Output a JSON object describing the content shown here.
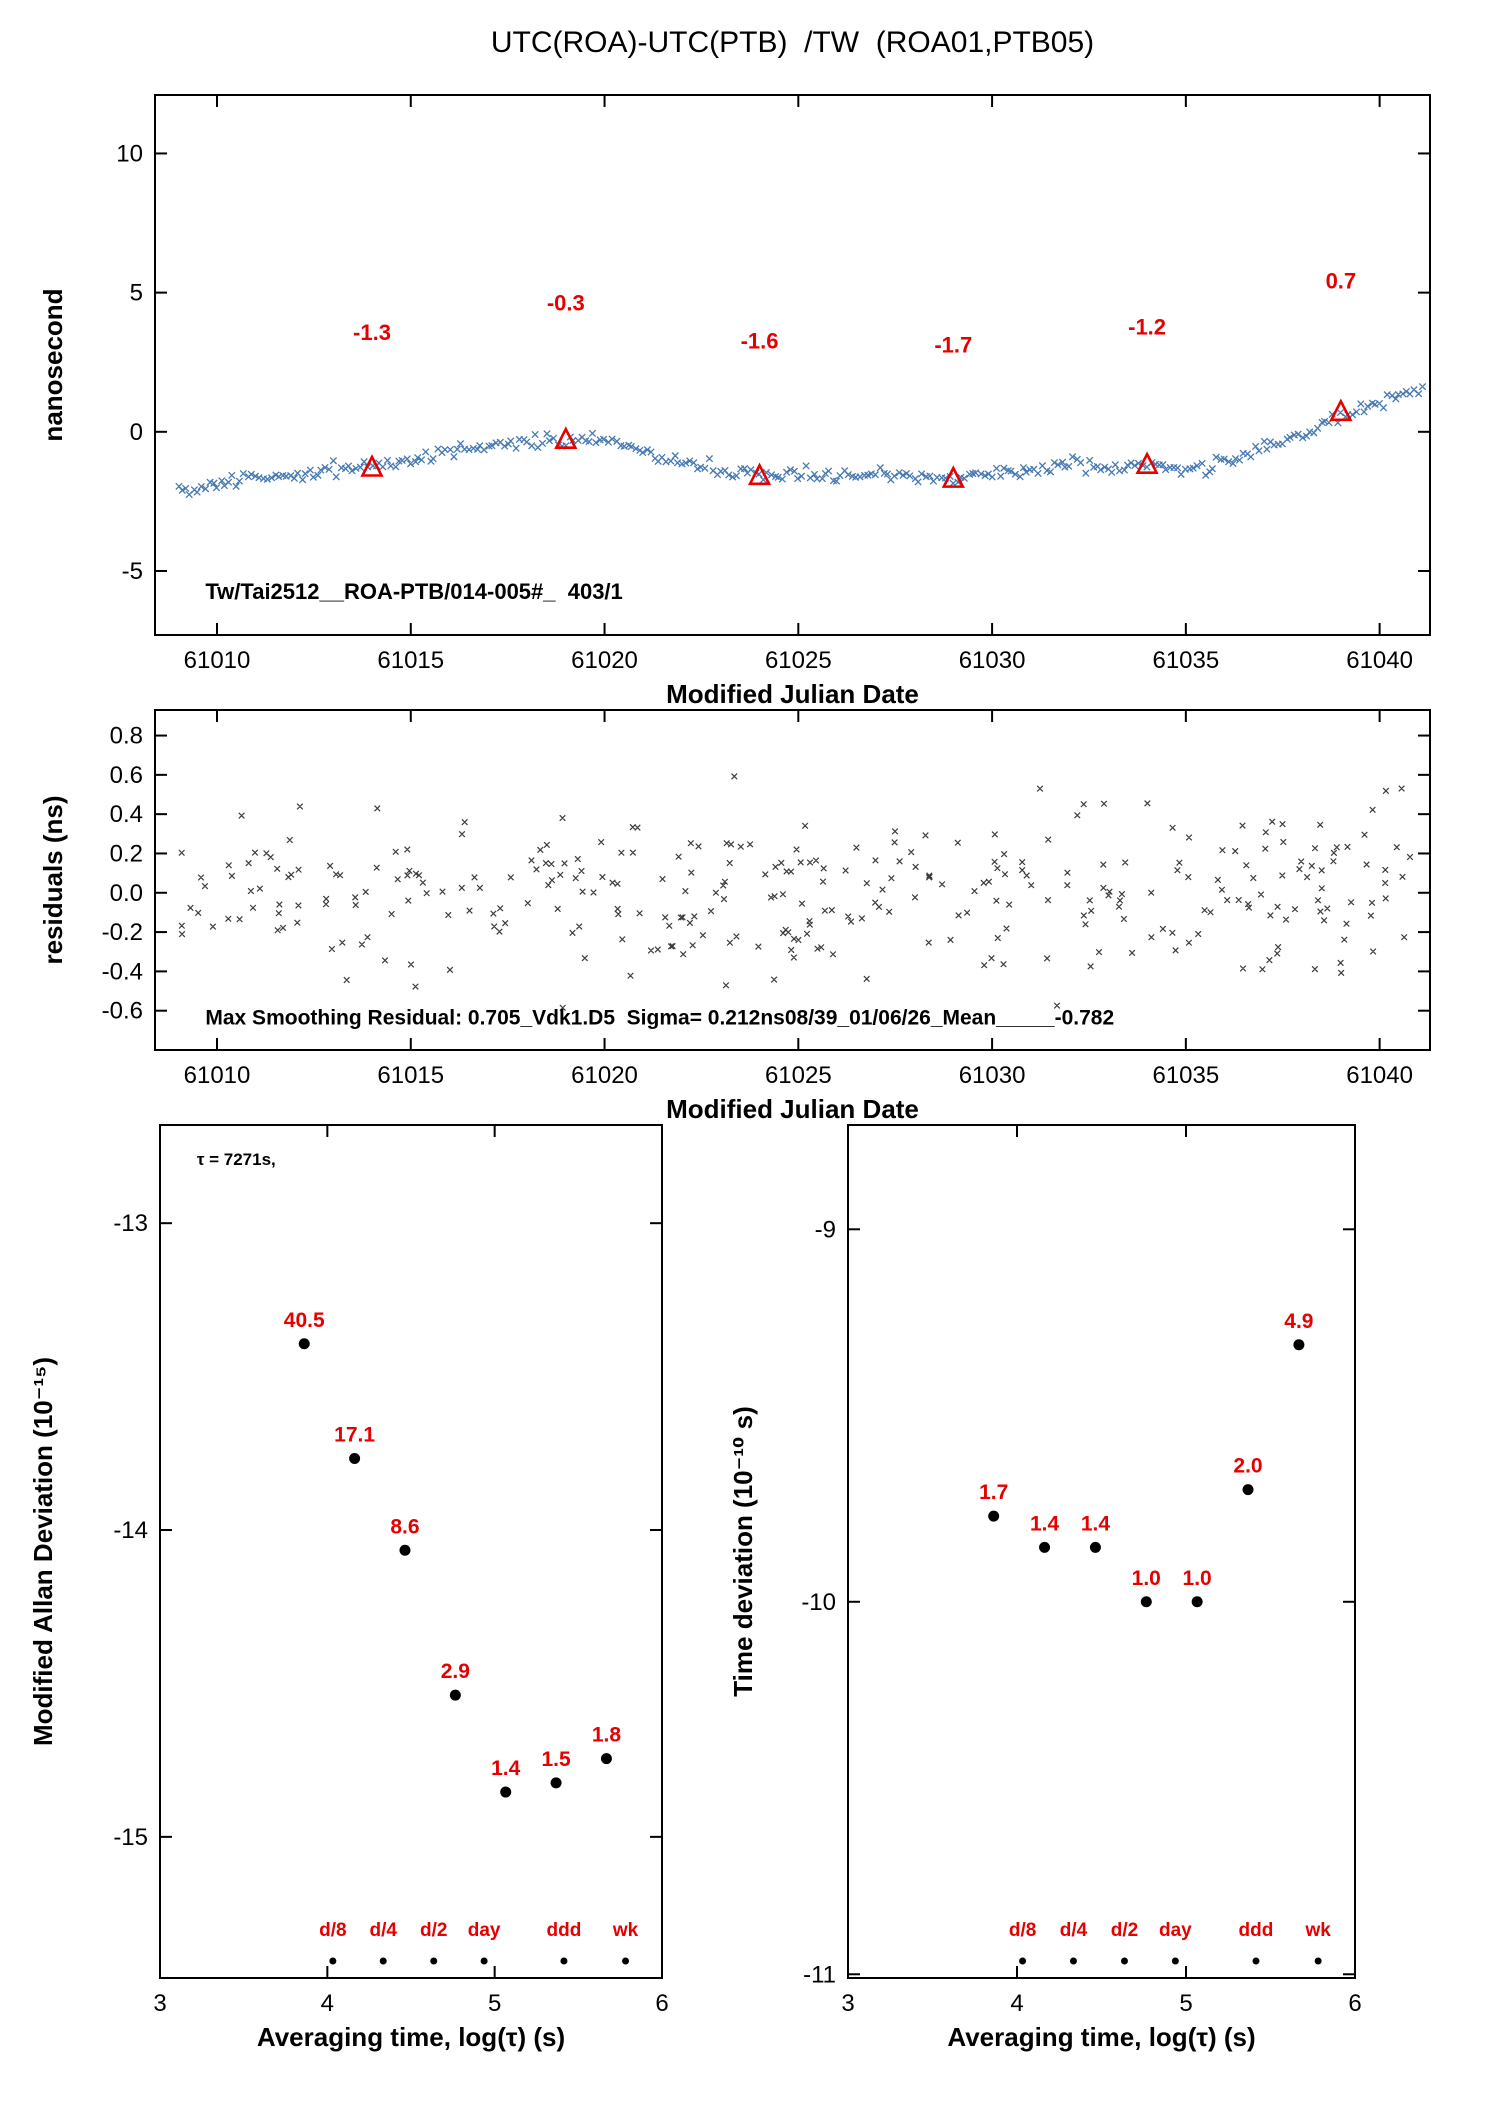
{
  "title": "UTC(ROA)-UTC(PTB)  /TW  (ROA01,PTB05)",
  "palette": {
    "series_blue": "#4679b2",
    "residual_gray": "#3c3c3c",
    "accent_red": "#e60000",
    "axis_black": "#000000"
  },
  "chart_data": [
    {
      "id": "time-transfer",
      "type": "scatter",
      "title": "UTC(ROA)-UTC(PTB)  /TW  (ROA01,PTB05)",
      "xlabel": "Modified Julian Date",
      "ylabel": "nanosecond",
      "xlim": [
        61008.4,
        61041.3
      ],
      "ylim": [
        -7.3,
        12.1
      ],
      "xticks": {
        "v": [
          61010,
          61015,
          61020,
          61025,
          61030,
          61035,
          61040
        ],
        "l": [
          "61010",
          "61015",
          "61020",
          "61025",
          "61030",
          "61035",
          "61040"
        ]
      },
      "yticks": {
        "v": [
          10,
          5,
          0,
          -5
        ],
        "l": [
          "10",
          "5",
          "0",
          "-5"
        ]
      },
      "marker": "x",
      "color": "#4679b2",
      "x_range": [
        61009.0,
        61041.15
      ],
      "points_per_day": 10,
      "noise_sd": 0.12,
      "seed": 20240611,
      "trend_anchors": [
        [
          61009,
          -2.2
        ],
        [
          61010,
          -1.9
        ],
        [
          61011,
          -1.65
        ],
        [
          61012,
          -1.55
        ],
        [
          61013,
          -1.4
        ],
        [
          61014,
          -1.3
        ],
        [
          61015,
          -0.95
        ],
        [
          61016,
          -0.75
        ],
        [
          61017,
          -0.5
        ],
        [
          61018,
          -0.35
        ],
        [
          61019,
          -0.3
        ],
        [
          61020,
          -0.3
        ],
        [
          61020.5,
          -0.5
        ],
        [
          61021,
          -0.75
        ],
        [
          61022,
          -1.05
        ],
        [
          61023,
          -1.3
        ],
        [
          61024,
          -1.55
        ],
        [
          61025,
          -1.5
        ],
        [
          61026,
          -1.6
        ],
        [
          61027,
          -1.5
        ],
        [
          61028,
          -1.6
        ],
        [
          61029,
          -1.7
        ],
        [
          61030,
          -1.5
        ],
        [
          61031,
          -1.4
        ],
        [
          61032,
          -1.2
        ],
        [
          61033,
          -1.3
        ],
        [
          61034,
          -1.15
        ],
        [
          61035,
          -1.3
        ],
        [
          61036,
          -1.1
        ],
        [
          61037,
          -0.6
        ],
        [
          61038,
          -0.05
        ],
        [
          61039,
          0.6
        ],
        [
          61040,
          1.0
        ],
        [
          61041,
          1.5
        ],
        [
          61041.2,
          1.6
        ]
      ],
      "annotation": {
        "text": "Tw/Tai2512__ROA-PTB/014-005#_  403/1",
        "x": 61009.7,
        "y": -6.0
      },
      "highlights": [
        {
          "x": 61014,
          "y": -1.3,
          "label": "-1.3",
          "label_y": 3.3
        },
        {
          "x": 61019,
          "y": -0.3,
          "label": "-0.3",
          "label_y": 4.35
        },
        {
          "x": 61024,
          "y": -1.6,
          "label": "-1.6",
          "label_y": 3.0
        },
        {
          "x": 61029,
          "y": -1.7,
          "label": "-1.7",
          "label_y": 2.85
        },
        {
          "x": 61034,
          "y": -1.2,
          "label": "-1.2",
          "label_y": 3.5
        },
        {
          "x": 61039,
          "y": 0.7,
          "label": "0.7",
          "label_y": 5.15
        }
      ]
    },
    {
      "id": "residuals",
      "type": "scatter",
      "xlabel": "Modified Julian Date",
      "ylabel": "residuals (ns)",
      "xlim": [
        61008.4,
        61041.3
      ],
      "ylim": [
        -0.8,
        0.93
      ],
      "xticks": {
        "v": [
          61010,
          61015,
          61020,
          61025,
          61030,
          61035,
          61040
        ],
        "l": [
          "61010",
          "61015",
          "61020",
          "61025",
          "61030",
          "61035",
          "61040"
        ]
      },
      "yticks": {
        "v": [
          0.8,
          0.6,
          0.4,
          0.2,
          0.0,
          -0.2,
          -0.4,
          -0.6
        ],
        "l": [
          "0.8",
          "0.6",
          "0.4",
          "0.2",
          "0.0",
          "-0.2",
          "-0.4",
          "-0.6"
        ]
      },
      "marker": "x",
      "color": "#3c3c3c",
      "sigma": 0.212,
      "mean": 0.0,
      "n_points": 330,
      "x_range": [
        61009.0,
        61041.1
      ],
      "clip": [
        -0.63,
        0.76
      ],
      "seed": 987654,
      "annotation": {
        "text": "Max Smoothing Residual: 0.705_Vdk1.D5  Sigma= 0.212ns08/39_01/06/26_Mean_____-0.782",
        "x": 61009.7,
        "y": -0.67
      }
    },
    {
      "id": "mdev",
      "type": "scatter",
      "xlabel": "Averaging time, log(τ) (s)",
      "ylabel": "Modified Allan Deviation (10⁻¹⁵)",
      "xlim": [
        3,
        6
      ],
      "ylim": [
        -15.46,
        -12.68
      ],
      "xticks": {
        "v": [
          3,
          4,
          5,
          6
        ],
        "l": [
          "3",
          "4",
          "5",
          "6"
        ]
      },
      "yticks": {
        "v": [
          -13,
          -14,
          -15
        ],
        "l": [
          "-13",
          "-14",
          "-15"
        ]
      },
      "x": [
        3.862,
        4.163,
        4.464,
        4.765,
        5.066,
        5.367,
        5.668
      ],
      "y": [
        -13.393,
        -13.767,
        -14.066,
        -14.538,
        -14.854,
        -14.824,
        -14.745
      ],
      "values_1e-15": [
        40.5,
        17.1,
        8.6,
        2.9,
        1.4,
        1.5,
        1.8
      ],
      "point_labels": [
        "40.5",
        "17.1",
        "8.6",
        "2.9",
        "1.4",
        "1.5",
        "1.8"
      ],
      "note": {
        "text": "τ = 7271s,",
        "x": 3.22,
        "y": -12.81
      },
      "period_ticks": {
        "labels": [
          "d/8",
          "d/4",
          "d/2",
          "day",
          "ddd",
          "wk"
        ],
        "x": [
          4.033,
          4.334,
          4.636,
          4.937,
          5.414,
          5.782
        ]
      }
    },
    {
      "id": "tdev",
      "type": "scatter",
      "xlabel": "Averaging time, log(τ) (s)",
      "ylabel": "Time deviation (10⁻¹⁰ s)",
      "xlim": [
        3,
        6
      ],
      "ylim": [
        -11.01,
        -8.72
      ],
      "xticks": {
        "v": [
          3,
          4,
          5,
          6
        ],
        "l": [
          "3",
          "4",
          "5",
          "6"
        ]
      },
      "yticks": {
        "v": [
          -9,
          -10,
          -11
        ],
        "l": [
          "-9",
          "-10",
          "-11"
        ]
      },
      "x": [
        3.862,
        4.163,
        4.464,
        4.765,
        5.066,
        5.367,
        5.668
      ],
      "y": [
        -9.77,
        -9.854,
        -9.854,
        -10.0,
        -10.0,
        -9.699,
        -9.31
      ],
      "values_1e-10": [
        1.7,
        1.4,
        1.4,
        1.0,
        1.0,
        2.0,
        4.9
      ],
      "point_labels": [
        "1.7",
        "1.4",
        "1.4",
        "1.0",
        "1.0",
        "2.0",
        "4.9"
      ],
      "period_ticks": {
        "labels": [
          "d/8",
          "d/4",
          "d/2",
          "day",
          "ddd",
          "wk"
        ],
        "x": [
          4.033,
          4.334,
          4.636,
          4.937,
          5.414,
          5.782
        ]
      }
    }
  ]
}
